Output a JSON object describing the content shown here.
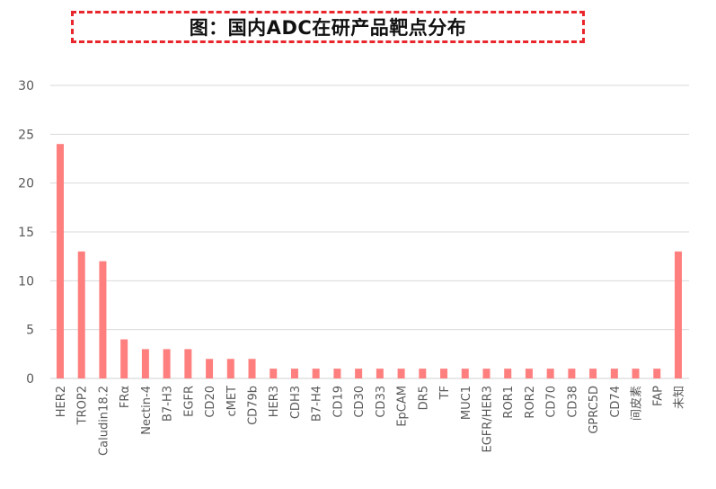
{
  "title": "图：国内ADC在研产品靶点分布",
  "colors": {
    "bar": "#ff7f7f",
    "title_border": "#e8262b",
    "grid": "#d9d9d9"
  },
  "chart_data": {
    "type": "bar",
    "title": "图：国内ADC在研产品靶点分布",
    "xlabel": "",
    "ylabel": "",
    "ylim": [
      0,
      30
    ],
    "yticks": [
      0,
      5,
      10,
      15,
      20,
      25,
      30
    ],
    "grid": true,
    "legend": "none",
    "categories": [
      "HER2",
      "TROP2",
      "Caludin18.2",
      "FRα",
      "Nectin-4",
      "B7-H3",
      "EGFR",
      "CD20",
      "cMET",
      "CD79b",
      "HER3",
      "CDH3",
      "B7-H4",
      "CD19",
      "CD30",
      "CD33",
      "EpCAM",
      "DR5",
      "TF",
      "MUC1",
      "EGFR/HER3",
      "ROR1",
      "ROR2",
      "CD70",
      "CD38",
      "GPRC5D",
      "CD74",
      "间皮素",
      "FAP",
      "未知"
    ],
    "values": [
      24,
      13,
      12,
      4,
      3,
      3,
      3,
      2,
      2,
      2,
      1,
      1,
      1,
      1,
      1,
      1,
      1,
      1,
      1,
      1,
      1,
      1,
      1,
      1,
      1,
      1,
      1,
      1,
      1,
      13
    ]
  }
}
